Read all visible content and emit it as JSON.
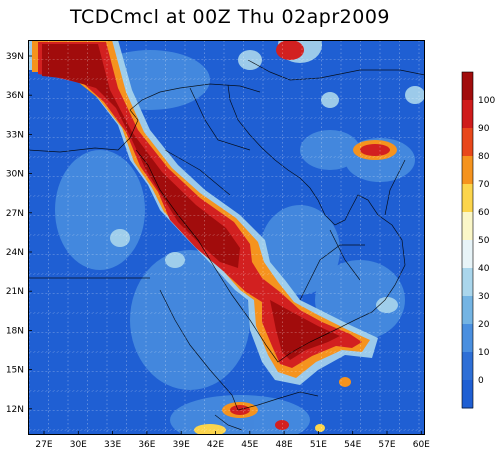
{
  "title": "TCDCmcl at 00Z Thu 02apr2009",
  "lon_ticks": [
    "27E",
    "30E",
    "33E",
    "36E",
    "39E",
    "42E",
    "45E",
    "48E",
    "51E",
    "54E",
    "57E",
    "60E"
  ],
  "lat_ticks": [
    "39N",
    "36N",
    "33N",
    "30N",
    "27N",
    "24N",
    "21N",
    "18N",
    "15N",
    "12N"
  ],
  "colorbar": {
    "labels": [
      "100",
      "90",
      "80",
      "70",
      "60",
      "50",
      "40",
      "30",
      "20",
      "10",
      "0"
    ],
    "colors": [
      "#a10c0c",
      "#cf1b1b",
      "#e8471b",
      "#f5931e",
      "#fcd54c",
      "#fbf7c8",
      "#e8f4f8",
      "#aad6ec",
      "#74b4e3",
      "#4a8fdf",
      "#2e6fd6",
      "#1f5fd3"
    ]
  },
  "palette": {
    "background": "#1f5fd3",
    "light": "#4a8fdf",
    "pale": "#aad6ec",
    "white": "#eef7fb",
    "yellow": "#fcd54c",
    "orange": "#f5931e",
    "red": "#d22020",
    "darkred": "#a10c0c"
  }
}
